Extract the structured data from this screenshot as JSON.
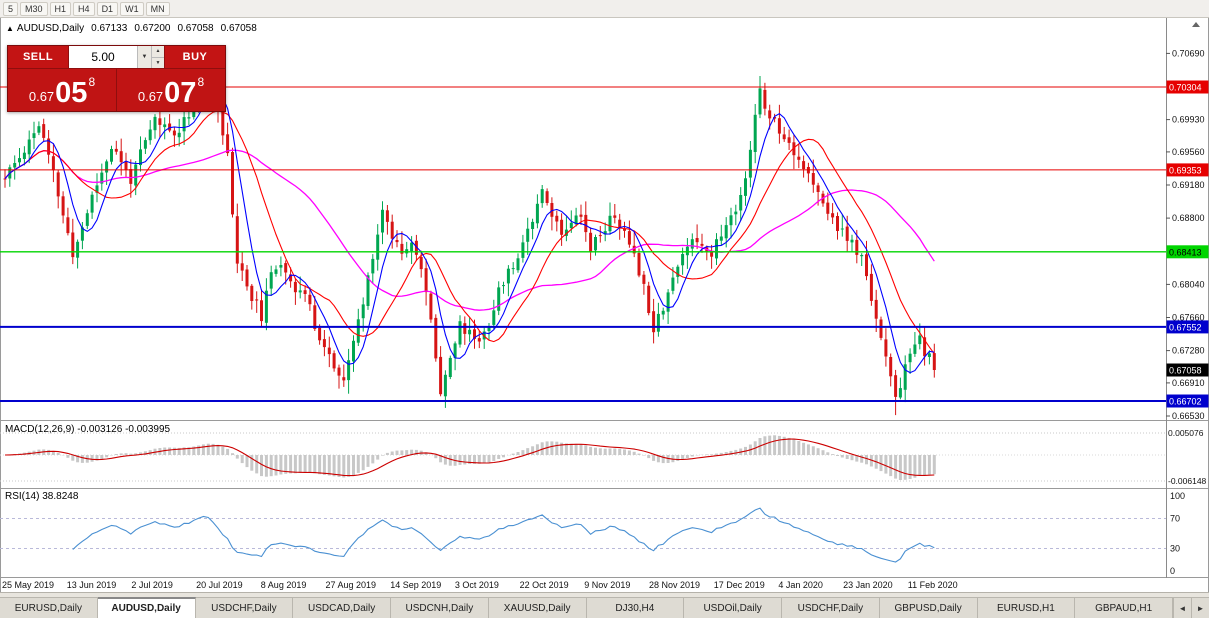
{
  "toolbar": {
    "timeframes": [
      "5",
      "M30",
      "H1",
      "H4",
      "D1",
      "W1",
      "MN"
    ]
  },
  "chart_header": {
    "symbol": "AUDUSD,Daily",
    "open": "0.67133",
    "high": "0.67200",
    "low": "0.67058",
    "close": "0.67058"
  },
  "icons": {
    "collapse": "▲",
    "volume_dropdown": "▼",
    "spin_up": "▲",
    "spin_down": "▼",
    "tab_scroll_left": "◄",
    "tab_scroll_right": "►"
  },
  "trade_panel": {
    "sell_label": "SELL",
    "buy_label": "BUY",
    "volume_value": "5.00",
    "sell_price_small": "0.67",
    "sell_price_big": "05",
    "sell_price_sup": "8",
    "buy_price_small": "0.67",
    "buy_price_big": "07",
    "buy_price_sup": "8"
  },
  "indicators": {
    "macd_label": "MACD(12,26,9) -0.003126 -0.003995",
    "rsi_label": "RSI(14) 38.8248"
  },
  "tabs": {
    "items": [
      {
        "label": "EURUSD,Daily",
        "active": false
      },
      {
        "label": "AUDUSD,Daily",
        "active": true
      },
      {
        "label": "USDCHF,Daily",
        "active": false
      },
      {
        "label": "USDCAD,Daily",
        "active": false
      },
      {
        "label": "USDCNH,Daily",
        "active": false
      },
      {
        "label": "XAUUSD,Daily",
        "active": false
      },
      {
        "label": "DJ30,H4",
        "active": false
      },
      {
        "label": "USDOil,Daily",
        "active": false
      },
      {
        "label": "USDCHF,Daily",
        "active": false
      },
      {
        "label": "GBPUSD,Daily",
        "active": false
      },
      {
        "label": "EURUSD,H1",
        "active": false
      },
      {
        "label": "GBPAUD,H1",
        "active": false
      }
    ]
  },
  "chart_data": {
    "type": "candlestick",
    "symbol": "AUDUSD",
    "timeframe": "Daily",
    "bar_count": 193,
    "bar_spacing_px": 4.84,
    "current_price": 0.67058,
    "current_price_tag": {
      "value": "0.67058",
      "bg": "#000000",
      "text": "#ffffff"
    },
    "up_color": "#00a651",
    "down_color": "#d61414",
    "price_axis_ticks": [
      "0.70690",
      "0.69930",
      "0.69560",
      "0.69180",
      "0.68800",
      "0.68040",
      "0.67660",
      "0.67280",
      "0.66910",
      "0.66530"
    ],
    "levels": [
      {
        "price": 0.70304,
        "color": "#e60000",
        "label_text_color": "#ffffff",
        "width": 1
      },
      {
        "price": 0.69353,
        "color": "#e60000",
        "label_text_color": "#ffffff",
        "width": 1
      },
      {
        "price": 0.68413,
        "color": "#00d500",
        "label_text_color": "#000000",
        "width": 1.4
      },
      {
        "price": 0.67552,
        "color": "#0000cd",
        "label_text_color": "#ffffff",
        "width": 2
      },
      {
        "price": 0.66702,
        "color": "#0000cd",
        "label_text_color": "#ffffff",
        "width": 2
      }
    ],
    "ma_periods": {
      "fast": 6,
      "medium": 14,
      "slow": 34
    },
    "ma_colors": {
      "fast": "#0000ff",
      "medium": "#ff0000",
      "slow": "#ff00ff"
    },
    "macd_params": {
      "fast": 12,
      "slow": 26,
      "signal": 9
    },
    "macd_values_shown": [
      "-0.003126",
      "-0.003995"
    ],
    "macd_axis_levels": [
      "0.005076",
      "-0.006148"
    ],
    "macd_histogram_color": "#c8c8c8",
    "macd_signal_color": "#cc0000",
    "rsi_period": 14,
    "rsi_value_shown": "38.8248",
    "rsi_axis_levels": [
      "100",
      "70",
      "30",
      "0"
    ],
    "rsi_line_color": "#4a90d2",
    "date_labels": [
      "25 May 2019",
      "13 Jun 2019",
      "2 Jul 2019",
      "20 Jul 2019",
      "8 Aug 2019",
      "27 Aug 2019",
      "14 Sep 2019",
      "3 Oct 2019",
      "22 Oct 2019",
      "9 Nov 2019",
      "28 Nov 2019",
      "17 Dec 2019",
      "4 Jan 2020",
      "23 Jan 2020",
      "11 Feb 2020"
    ],
    "close_path_anchors": [
      [
        0,
        0.6925
      ],
      [
        3,
        0.695
      ],
      [
        7,
        0.6988
      ],
      [
        10,
        0.693
      ],
      [
        14,
        0.6836
      ],
      [
        18,
        0.6905
      ],
      [
        22,
        0.6962
      ],
      [
        26,
        0.6925
      ],
      [
        31,
        0.6993
      ],
      [
        35,
        0.6975
      ],
      [
        38,
        0.7002
      ],
      [
        41,
        0.7042
      ],
      [
        44,
        0.701
      ],
      [
        46,
        0.695
      ],
      [
        48,
        0.683
      ],
      [
        51,
        0.679
      ],
      [
        53,
        0.6768
      ],
      [
        55,
        0.6812
      ],
      [
        57,
        0.6832
      ],
      [
        60,
        0.68
      ],
      [
        62,
        0.6792
      ],
      [
        64,
        0.6758
      ],
      [
        66,
        0.6733
      ],
      [
        68,
        0.671
      ],
      [
        70,
        0.6688
      ],
      [
        72,
        0.674
      ],
      [
        74,
        0.6782
      ],
      [
        76,
        0.684
      ],
      [
        78,
        0.6888
      ],
      [
        80,
        0.6862
      ],
      [
        82,
        0.6842
      ],
      [
        84,
        0.6858
      ],
      [
        86,
        0.682
      ],
      [
        88,
        0.6762
      ],
      [
        90,
        0.6684
      ],
      [
        92,
        0.672
      ],
      [
        94,
        0.6756
      ],
      [
        96,
        0.6748
      ],
      [
        98,
        0.674
      ],
      [
        100,
        0.6762
      ],
      [
        103,
        0.681
      ],
      [
        105,
        0.6824
      ],
      [
        107,
        0.6855
      ],
      [
        109,
        0.688
      ],
      [
        111,
        0.6918
      ],
      [
        113,
        0.6884
      ],
      [
        115,
        0.6862
      ],
      [
        118,
        0.689
      ],
      [
        120,
        0.6868
      ],
      [
        121,
        0.6846
      ],
      [
        124,
        0.687
      ],
      [
        126,
        0.6884
      ],
      [
        128,
        0.686
      ],
      [
        130,
        0.6842
      ],
      [
        132,
        0.68
      ],
      [
        134,
        0.6756
      ],
      [
        136,
        0.678
      ],
      [
        138,
        0.6812
      ],
      [
        140,
        0.6836
      ],
      [
        142,
        0.686
      ],
      [
        144,
        0.685
      ],
      [
        146,
        0.684
      ],
      [
        148,
        0.6862
      ],
      [
        150,
        0.688
      ],
      [
        152,
        0.6905
      ],
      [
        154,
        0.696
      ],
      [
        156,
        0.7028
      ],
      [
        157,
        0.7005
      ],
      [
        159,
        0.6992
      ],
      [
        161,
        0.6975
      ],
      [
        163,
        0.6958
      ],
      [
        165,
        0.694
      ],
      [
        167,
        0.6915
      ],
      [
        169,
        0.6895
      ],
      [
        171,
        0.688
      ],
      [
        173,
        0.6862
      ],
      [
        175,
        0.685
      ],
      [
        177,
        0.6832
      ],
      [
        179,
        0.679
      ],
      [
        181,
        0.6745
      ],
      [
        183,
        0.6695
      ],
      [
        184,
        0.6668
      ],
      [
        185,
        0.669
      ],
      [
        186,
        0.6712
      ],
      [
        187,
        0.6718
      ],
      [
        188,
        0.6735
      ],
      [
        189,
        0.6742
      ],
      [
        190,
        0.6726
      ],
      [
        191,
        0.6718
      ],
      [
        192,
        0.67058
      ]
    ]
  }
}
